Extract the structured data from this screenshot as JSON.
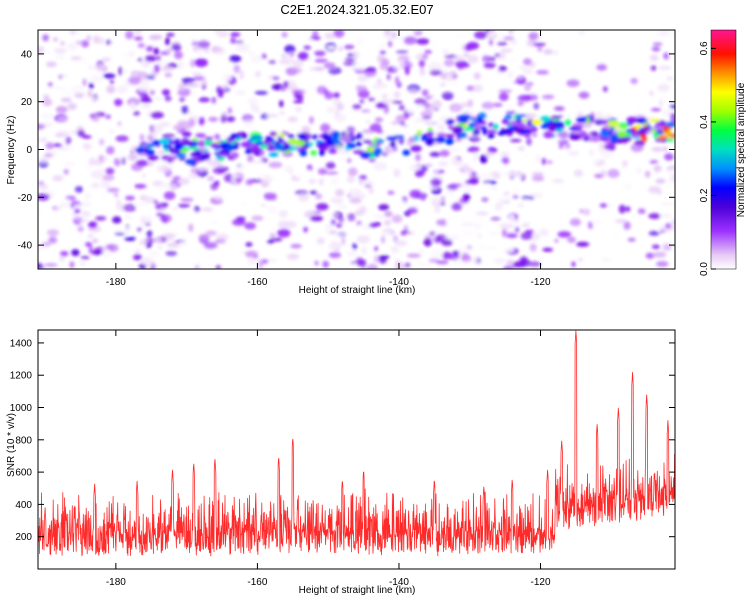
{
  "figure": {
    "title": "C2E1.2024.321.05.32.E07"
  },
  "chart_data": [
    {
      "type": "heatmap",
      "title": "C2E1.2024.321.05.32.E07",
      "xlabel": "Height of straight line (km)",
      "ylabel": "Frequency (Hz)",
      "xlim": [
        -191,
        -101
      ],
      "ylim": [
        -50,
        50
      ],
      "xticks": [
        -180,
        -160,
        -140,
        -120
      ],
      "yticks": [
        -40,
        -20,
        0,
        20,
        40
      ],
      "grid": false,
      "colorbar": {
        "label": "Normalized spectral amplitude",
        "range": [
          0.0,
          0.65
        ],
        "ticks": [
          0.0,
          0.2,
          0.4,
          0.6
        ],
        "colormap": [
          "#ffffff",
          "#e6c8f5",
          "#9b30ff",
          "#6a00e0",
          "#0000ff",
          "#00c8ff",
          "#00ff80",
          "#80ff00",
          "#ffff00",
          "#ff8000",
          "#ff0000",
          "#ff1493"
        ]
      },
      "band": {
        "description_points": [
          {
            "x": -176,
            "y": 1
          },
          {
            "x": -170,
            "y": -1
          },
          {
            "x": -160,
            "y": 2
          },
          {
            "x": -150,
            "y": 3
          },
          {
            "x": -142,
            "y": 0
          },
          {
            "x": -130,
            "y": 10
          },
          {
            "x": -120,
            "y": 10
          },
          {
            "x": -110,
            "y": 8
          },
          {
            "x": -101,
            "y": 8
          }
        ],
        "peak_amplitude": 0.62
      }
    },
    {
      "type": "line",
      "xlabel": "Height of straight line (km)",
      "ylabel": "SNR (10 * v/v)",
      "xlim": [
        -191,
        -101
      ],
      "ylim": [
        0,
        1480
      ],
      "xticks": [
        -180,
        -160,
        -140,
        -120
      ],
      "yticks": [
        200,
        400,
        600,
        800,
        1000,
        1200,
        1400
      ],
      "grid": false,
      "color": "#ff2a2a",
      "baseline": 170,
      "peaks": [
        {
          "x": -190,
          "y": 380
        },
        {
          "x": -187,
          "y": 340
        },
        {
          "x": -183,
          "y": 530
        },
        {
          "x": -177,
          "y": 550
        },
        {
          "x": -172,
          "y": 620
        },
        {
          "x": -169,
          "y": 660
        },
        {
          "x": -166,
          "y": 690
        },
        {
          "x": -157,
          "y": 700
        },
        {
          "x": -155,
          "y": 820
        },
        {
          "x": -148,
          "y": 560
        },
        {
          "x": -145,
          "y": 620
        },
        {
          "x": -135,
          "y": 560
        },
        {
          "x": -128,
          "y": 520
        },
        {
          "x": -124,
          "y": 560
        },
        {
          "x": -119,
          "y": 620
        },
        {
          "x": -117,
          "y": 800
        },
        {
          "x": -115,
          "y": 1480
        },
        {
          "x": -112,
          "y": 900
        },
        {
          "x": -109,
          "y": 1000
        },
        {
          "x": -107,
          "y": 1220
        },
        {
          "x": -105,
          "y": 1080
        },
        {
          "x": -102,
          "y": 920
        }
      ]
    }
  ]
}
